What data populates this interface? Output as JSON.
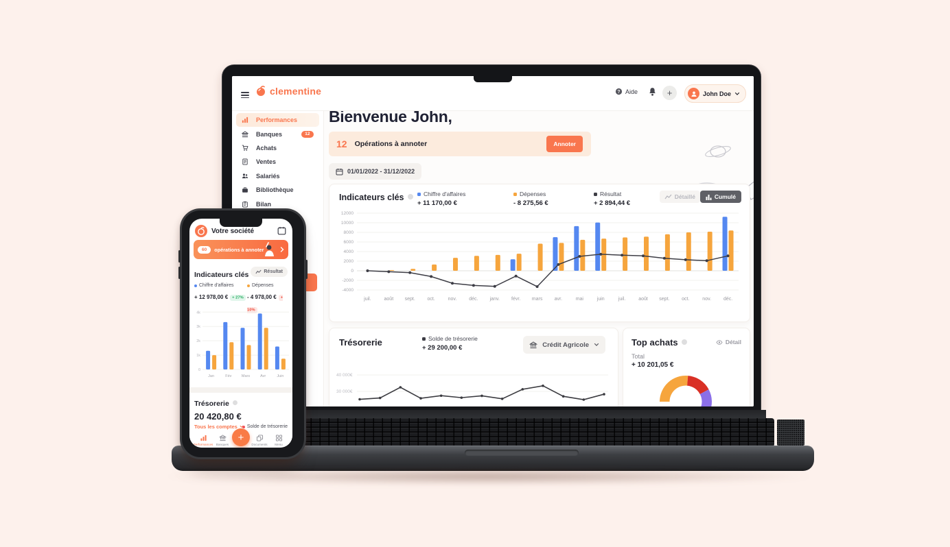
{
  "background": "#fdf1ec",
  "accent": "#f9764e",
  "laptop": {
    "topbar": {
      "brand": "clementine",
      "help": "Aide",
      "user": "John Doe"
    },
    "sidebar": {
      "items": [
        {
          "label": "Performances",
          "icon": "bar-chart",
          "active": true
        },
        {
          "label": "Banques",
          "icon": "bank",
          "badge": "12"
        },
        {
          "label": "Achats",
          "icon": "cart"
        },
        {
          "label": "Ventes",
          "icon": "document"
        },
        {
          "label": "Salariés",
          "icon": "people"
        },
        {
          "label": "Bibliothèque",
          "icon": "briefcase"
        },
        {
          "label": "Bilan",
          "icon": "clipboard"
        }
      ]
    },
    "main": {
      "welcome": "Bienvenue John,",
      "ops_count": "12",
      "ops_label": "Opérations à annoter",
      "annotate": "Annoter",
      "date_range": "01/01/2022  -  31/12/2022",
      "indicators": {
        "title": "Indicateurs clés",
        "legend": [
          {
            "label": "Chiffre d'affaires",
            "value": "+ 11 170,00 €",
            "color": "#5588f0"
          },
          {
            "label": "Dépenses",
            "value": "- 8 275,56 €",
            "color": "#f6a53d"
          },
          {
            "label": "Résultat",
            "value": "+ 2 894,44 €",
            "color": "#3d3d45"
          }
        ],
        "btn_detail": "Détaillé",
        "btn_cumul": "Cumulé"
      },
      "treasury": {
        "title": "Trésorerie",
        "legend_label": "Solde de trésorerie",
        "legend_value": "+ 29 200,00 €",
        "account": "Crédit Agricole"
      },
      "top_purchases": {
        "title": "Top achats",
        "detail": "Détail",
        "total_label": "Total",
        "total_value": "+ 10 201,05 €"
      }
    }
  },
  "phone": {
    "header": {
      "title": "Votre société"
    },
    "banner": {
      "count": "60",
      "label": "opérations à annoter"
    },
    "indicators": {
      "title": "Indicateurs clés",
      "btn": "Résultat",
      "legend": [
        {
          "label": "Chiffre d'affaires",
          "value": "+ 12 978,00 €",
          "delta": "+ 27%",
          "direction": "up",
          "color": "#5588f0"
        },
        {
          "label": "Dépenses",
          "value": "- 4 978,00 €",
          "delta": "+ 10%",
          "direction": "down",
          "color": "#f6a53d"
        }
      ]
    },
    "treasury": {
      "title": "Trésorerie",
      "amount": "20 420,80 €",
      "accounts_link": "Tous les comptes",
      "legend": "Solde de trésorerie",
      "legend_color": "#f2545b"
    },
    "nav": [
      {
        "label": "Performances",
        "icon": "bar-chart",
        "active": true
      },
      {
        "label": "Banques",
        "icon": "bank"
      },
      {
        "label": "Documents",
        "icon": "copy"
      },
      {
        "label": "Menu",
        "icon": "grid"
      }
    ],
    "fab": "+"
  },
  "chart_data": [
    {
      "id": "indicators",
      "type": "bar+line",
      "title": "Indicateurs clés",
      "categories": [
        "juil.",
        "août",
        "sept.",
        "oct.",
        "nov.",
        "déc.",
        "janv.",
        "févr.",
        "mars",
        "avr.",
        "mai",
        "juin",
        "juil.",
        "août",
        "sept.",
        "oct.",
        "nov.",
        "déc."
      ],
      "series": [
        {
          "name": "Chiffre d'affaires",
          "type": "bar",
          "color": "#5588f0",
          "values": [
            0,
            0,
            0,
            0,
            0,
            0,
            0,
            2400,
            0,
            7000,
            9300,
            10050,
            0,
            0,
            0,
            0,
            0,
            11250
          ]
        },
        {
          "name": "Dépenses",
          "type": "bar",
          "color": "#f6a53d",
          "values": [
            0,
            150,
            400,
            1300,
            2700,
            3100,
            3300,
            3550,
            5650,
            5800,
            6450,
            6700,
            6950,
            7100,
            7600,
            8000,
            8150,
            8400
          ]
        },
        {
          "name": "Résultat",
          "type": "line",
          "color": "#3d3d45",
          "values": [
            0,
            -200,
            -400,
            -1200,
            -2600,
            -3050,
            -3250,
            -1100,
            -3300,
            1300,
            3000,
            3450,
            3250,
            3100,
            2600,
            2300,
            2100,
            3100
          ]
        }
      ],
      "ylim": [
        -4000,
        12000
      ],
      "yticks": [
        12000,
        10000,
        8000,
        6000,
        4000,
        2000,
        0,
        -2000,
        -4000
      ],
      "grid": true,
      "legend_position": "top"
    },
    {
      "id": "treasury",
      "type": "line",
      "title": "Trésorerie",
      "color": "#3b3b40",
      "values": [
        25200,
        26000,
        32500,
        25800,
        27400,
        26200,
        27300,
        25500,
        31300,
        33400,
        27000,
        25000,
        28300
      ],
      "yticks": [
        {
          "label": "40 000€",
          "value": 40000
        },
        {
          "label": "30 000€",
          "value": 30000
        }
      ],
      "ylim": [
        24000,
        42000
      ],
      "grid": true
    },
    {
      "id": "top-purchases",
      "type": "donut",
      "title": "Top achats",
      "start_angle_deg": 180,
      "clockwise": true,
      "slices": [
        {
          "color": "#f6a53d",
          "angle_deg": 95
        },
        {
          "color": "#d93025",
          "angle_deg": 57
        },
        {
          "color": "#8b6fe8",
          "angle_deg": 53
        }
      ]
    },
    {
      "id": "phone-indicators",
      "type": "bar",
      "categories": [
        "Jan",
        "Fév",
        "Mars",
        "Avr",
        "Juin"
      ],
      "series": [
        {
          "name": "Chiffre d'affaires",
          "color": "#5588f0",
          "values": [
            1300,
            3300,
            2900,
            3900,
            1600
          ]
        },
        {
          "name": "Dépenses",
          "color": "#f6a53d",
          "values": [
            1000,
            1900,
            1700,
            2900,
            750
          ]
        }
      ],
      "yticks": [
        {
          "label": "4k",
          "value": 4000
        },
        {
          "label": "3k",
          "value": 3000
        },
        {
          "label": "2k",
          "value": 2000
        },
        {
          "label": "1k",
          "value": 1000
        },
        {
          "label": "0",
          "value": 0
        }
      ],
      "ylim": [
        0,
        4300
      ],
      "grid": true
    }
  ]
}
